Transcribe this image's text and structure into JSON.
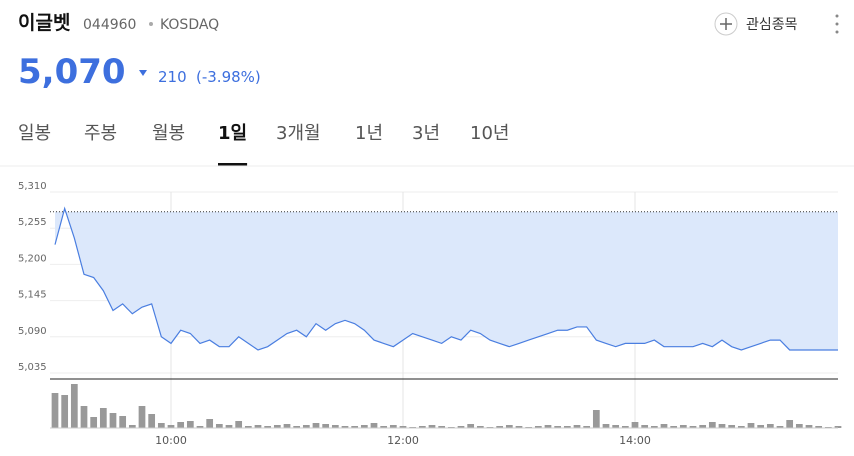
{
  "header": {
    "name": "이글벳",
    "code": "044960",
    "market": "KOSDAQ",
    "watch": "관심종목",
    "price": "5,070",
    "change": "210",
    "change_pct": "(-3.98%)"
  },
  "tabs": [
    "일봉",
    "주봉",
    "월봉",
    "1일",
    "3개월",
    "1년",
    "3년",
    "10년"
  ],
  "active_tab": 3,
  "chart_data": {
    "type": "line",
    "color": "#4a7ee0",
    "fill": "#dce8fb",
    "grid": true,
    "x": [
      "09:00",
      "09:05",
      "09:10",
      "09:15",
      "09:20",
      "09:25",
      "09:30",
      "09:35",
      "09:40",
      "09:45",
      "09:50",
      "09:55",
      "10:00",
      "10:05",
      "10:10",
      "10:15",
      "10:20",
      "10:25",
      "10:30",
      "10:35",
      "10:40",
      "10:45",
      "10:50",
      "10:55",
      "11:00",
      "11:05",
      "11:10",
      "11:15",
      "11:20",
      "11:25",
      "11:30",
      "11:35",
      "11:40",
      "11:45",
      "11:50",
      "11:55",
      "12:00",
      "12:05",
      "12:10",
      "12:15",
      "12:20",
      "12:25",
      "12:30",
      "12:35",
      "12:40",
      "12:45",
      "12:50",
      "12:55",
      "13:00",
      "13:05",
      "13:10",
      "13:15",
      "13:20",
      "13:25",
      "13:30",
      "13:35",
      "13:40",
      "13:45",
      "13:50",
      "13:55",
      "14:00",
      "14:05",
      "14:10",
      "14:15",
      "14:20",
      "14:25",
      "14:30",
      "14:35",
      "14:40",
      "14:45",
      "14:50",
      "14:55",
      "15:00",
      "15:05",
      "15:10",
      "15:15",
      "15:20",
      "15:25",
      "15:30",
      "15:35",
      "15:40",
      "15:45"
    ],
    "values": [
      5230,
      5285,
      5240,
      5185,
      5180,
      5160,
      5130,
      5140,
      5125,
      5135,
      5140,
      5090,
      5080,
      5100,
      5095,
      5080,
      5085,
      5075,
      5075,
      5090,
      5080,
      5070,
      5075,
      5085,
      5095,
      5100,
      5090,
      5110,
      5100,
      5110,
      5115,
      5110,
      5100,
      5085,
      5080,
      5075,
      5085,
      5095,
      5090,
      5085,
      5080,
      5090,
      5085,
      5100,
      5095,
      5085,
      5080,
      5075,
      5080,
      5085,
      5090,
      5095,
      5100,
      5100,
      5105,
      5105,
      5085,
      5080,
      5075,
      5080,
      5080,
      5080,
      5085,
      5075,
      5075,
      5075,
      5075,
      5080,
      5075,
      5085,
      5075,
      5070,
      5075,
      5080,
      5085,
      5085,
      5070,
      5070,
      5070,
      5070,
      5070,
      5070
    ],
    "volume": {
      "axis": "y2",
      "color": "#999999",
      "values": [
        35,
        33,
        44,
        22,
        11,
        20,
        15,
        12,
        3,
        22,
        14,
        5,
        3,
        6,
        7,
        2,
        9,
        4,
        3,
        7,
        2,
        3,
        2,
        3,
        4,
        2,
        3,
        5,
        4,
        3,
        2,
        2,
        3,
        5,
        2,
        3,
        2,
        1,
        2,
        3,
        2,
        1,
        2,
        4,
        2,
        1,
        2,
        3,
        2,
        1,
        2,
        3,
        2,
        2,
        3,
        2,
        18,
        4,
        3,
        2,
        6,
        3,
        2,
        4,
        2,
        3,
        2,
        3,
        6,
        4,
        3,
        2,
        5,
        3,
        4,
        2,
        8,
        4,
        3,
        2,
        1,
        2
      ]
    },
    "reference_line": 5280,
    "xlim": [
      "09:00",
      "15:45"
    ],
    "xticks": [
      "10:00",
      "12:00",
      "14:00"
    ],
    "ylim": [
      5035,
      5310
    ],
    "yticks": [
      {
        "value": 5035,
        "label": "5,035"
      },
      {
        "value": 5090,
        "label": "5,090"
      },
      {
        "value": 5145,
        "label": "5,145"
      },
      {
        "value": 5200,
        "label": "5,200"
      },
      {
        "value": 5255,
        "label": "5,255"
      },
      {
        "value": 5310,
        "label": "5,310"
      }
    ],
    "y2lim": [
      0,
      45
    ]
  }
}
